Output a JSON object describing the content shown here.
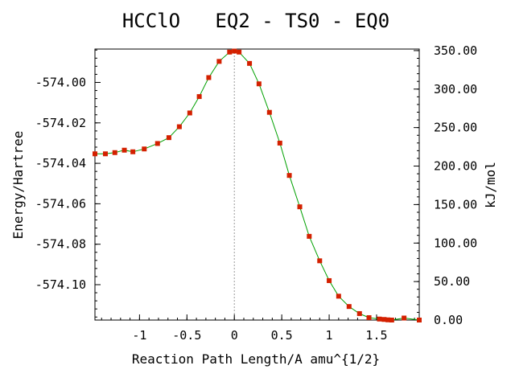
{
  "chart_data": {
    "type": "line",
    "title": "HCClO   EQ2 - TS0 - EQ0",
    "xlabel": "Reaction Path Length/A amu^{1/2}",
    "ylabel": "Energy/Hartree",
    "y2label": "kJ/mol",
    "xlim": [
      -1.47,
      1.95
    ],
    "ylim": [
      -574.1175,
      -573.9835
    ],
    "y2lim": [
      0.0,
      352.0
    ],
    "xticks": [
      -1,
      -0.5,
      0,
      0.5,
      1,
      1.5
    ],
    "xtick_labels": [
      "-1",
      "-0.5",
      "0",
      "0.5",
      "1",
      "1.5"
    ],
    "yticks": [
      -574.1,
      -574.08,
      -574.06,
      -574.04,
      -574.02,
      -574.0
    ],
    "ytick_labels": [
      "-574.10",
      "-574.08",
      "-574.06",
      "-574.04",
      "-574.02",
      "-574.00"
    ],
    "y2ticks": [
      0,
      50,
      100,
      150,
      200,
      250,
      300,
      350
    ],
    "y2tick_labels": [
      "0.00",
      "50.00",
      "100.00",
      "150.00",
      "200.00",
      "250.00",
      "300.00",
      "350.00"
    ],
    "ts_x": 0.0,
    "grid": false,
    "colors": {
      "line": "#00a000",
      "marker": "#d42000",
      "ts_line": "#9a9a9a"
    },
    "series": [
      {
        "x": [
          -1.47,
          -1.36,
          -1.26,
          -1.16,
          -1.07,
          -0.95,
          -0.81,
          -0.69,
          -0.58,
          -0.47,
          -0.37,
          -0.27,
          -0.16,
          -0.05,
          0.0,
          0.05,
          0.16,
          0.26,
          0.37,
          0.48,
          0.58,
          0.69,
          0.79,
          0.9,
          1.0,
          1.1,
          1.21,
          1.32,
          1.42,
          1.53,
          1.58,
          1.62,
          1.66,
          1.79,
          1.95
        ],
        "y": [
          -574.0353,
          -574.0353,
          -574.0347,
          -574.0335,
          -574.0343,
          -574.0329,
          -574.0302,
          -574.0273,
          -574.0219,
          -574.0151,
          -574.007,
          -573.9976,
          -573.9896,
          -573.985,
          -573.9845,
          -573.985,
          -573.9906,
          -574.0007,
          -574.0148,
          -574.03,
          -574.046,
          -574.0615,
          -574.0761,
          -574.0882,
          -574.098,
          -574.1057,
          -574.1108,
          -574.1143,
          -574.1163,
          -574.117,
          -574.1172,
          -574.1174,
          -574.1175,
          -574.1165,
          -574.1175
        ]
      }
    ]
  }
}
